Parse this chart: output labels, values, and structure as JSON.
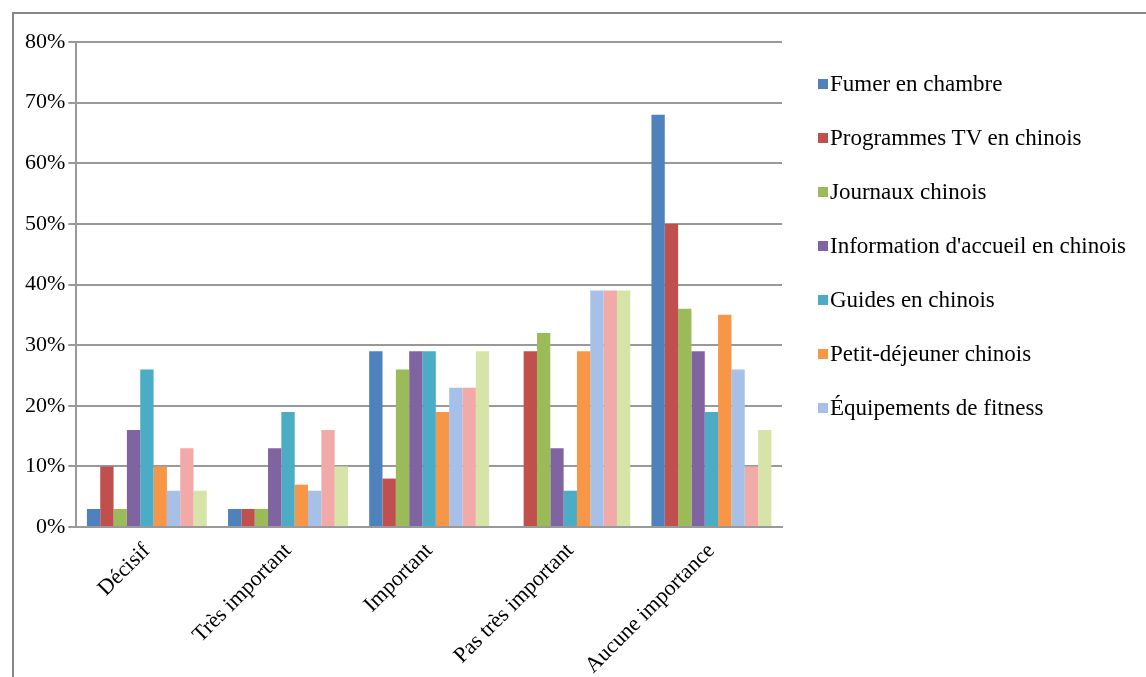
{
  "chart_data": {
    "type": "bar",
    "categories": [
      "Décisif",
      "Très important",
      "Important",
      "Pas très important",
      "Aucune importance"
    ],
    "series": [
      {
        "name": "Fumer en chambre",
        "color": "#4f81bd",
        "values": [
          3,
          3,
          29,
          0,
          68
        ]
      },
      {
        "name": "Programmes TV en chinois",
        "color": "#c0504d",
        "values": [
          10,
          3,
          8,
          29,
          50
        ]
      },
      {
        "name": "Journaux chinois",
        "color": "#9bbb59",
        "values": [
          3,
          3,
          26,
          32,
          36
        ]
      },
      {
        "name": "Information d'accueil en chinois",
        "color": "#8064a2",
        "values": [
          16,
          13,
          29,
          13,
          29
        ]
      },
      {
        "name": "Guides en chinois",
        "color": "#4bacc6",
        "values": [
          26,
          19,
          29,
          6,
          19
        ]
      },
      {
        "name": "Petit-déjeuner chinois",
        "color": "#f79646",
        "values": [
          10,
          7,
          19,
          29,
          35
        ]
      },
      {
        "name": "Équipements de fitness",
        "color": "#a7c0e8",
        "values": [
          6,
          6,
          23,
          39,
          26
        ]
      },
      {
        "color": "#f2aaa8",
        "values": [
          13,
          16,
          23,
          39,
          10
        ]
      },
      {
        "color": "#d7e4a8",
        "values": [
          6,
          10,
          29,
          39,
          16
        ]
      }
    ],
    "ylim": [
      0,
      80
    ],
    "yticks": [
      {
        "value": 0,
        "label": "0%"
      },
      {
        "value": 10,
        "label": "10%"
      },
      {
        "value": 20,
        "label": "20%"
      },
      {
        "value": 30,
        "label": "30%"
      },
      {
        "value": 40,
        "label": "40%"
      },
      {
        "value": 50,
        "label": "50%"
      },
      {
        "value": 60,
        "label": "60%"
      },
      {
        "value": 70,
        "label": "70%"
      },
      {
        "value": 80,
        "label": "80%"
      }
    ],
    "grid": "y",
    "legend": "right"
  }
}
